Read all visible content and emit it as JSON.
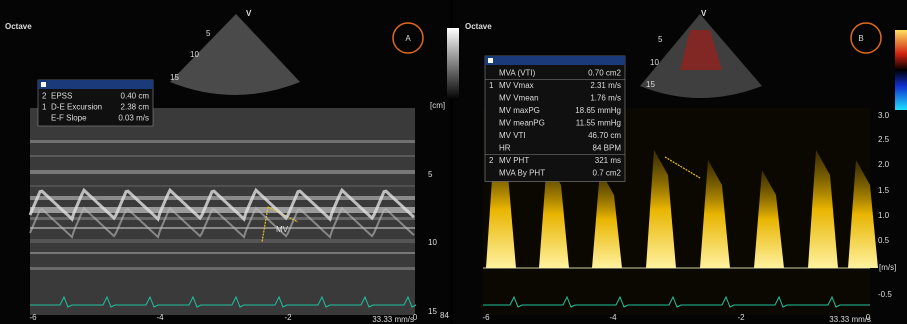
{
  "panel_a": {
    "preset": "Octave",
    "label": "A",
    "probe_mark": "V",
    "depth_marks": [
      "5",
      "10",
      "15"
    ],
    "measurements": {
      "rows": [
        {
          "index": "2",
          "name": "EPSS",
          "value": "0.40 cm"
        },
        {
          "index": "1",
          "name": "D-E Excursion",
          "value": "2.38 cm"
        },
        {
          "name": "E-F Slope",
          "value": "0.03 m/s"
        }
      ]
    },
    "caliper_label": "MV",
    "depth_axis": {
      "unit": "[cm]",
      "ticks": [
        "5",
        "10",
        "15"
      ]
    },
    "time_axis": {
      "ticks": [
        "-6",
        "-4",
        "-2",
        "0"
      ],
      "sweep": "33.33 mm/s"
    },
    "hr": "84"
  },
  "panel_b": {
    "preset": "Octave",
    "label": "B",
    "probe_mark": "V",
    "depth_marks": [
      "5",
      "10",
      "15"
    ],
    "measurements": {
      "rows": [
        {
          "name": "MVA (VTI)",
          "value": "0.70 cm2"
        },
        {
          "index": "1",
          "name": "MV Vmax",
          "value": "2.31 m/s"
        },
        {
          "name": "MV Vmean",
          "value": "1.76 m/s"
        },
        {
          "name": "MV maxPG",
          "value": "18.65 mmHg"
        },
        {
          "name": "MV meanPG",
          "value": "11.55 mmHg"
        },
        {
          "name": "MV VTI",
          "value": "46.70 cm"
        },
        {
          "name": "HR",
          "value": "84 BPM"
        },
        {
          "index": "2",
          "name": "MV PHT",
          "value": "321 ms"
        },
        {
          "name": "MVA By PHT",
          "value": "0.7 cm2"
        }
      ]
    },
    "velocity_axis": {
      "unit": "[m/s]",
      "ticks": [
        "3.0",
        "2.5",
        "2.0",
        "1.5",
        "1.0",
        "0.5",
        "-0.5"
      ]
    },
    "time_axis": {
      "ticks": [
        "-6",
        "-4",
        "-2",
        "0"
      ],
      "sweep": "33.33 mm/s"
    }
  }
}
